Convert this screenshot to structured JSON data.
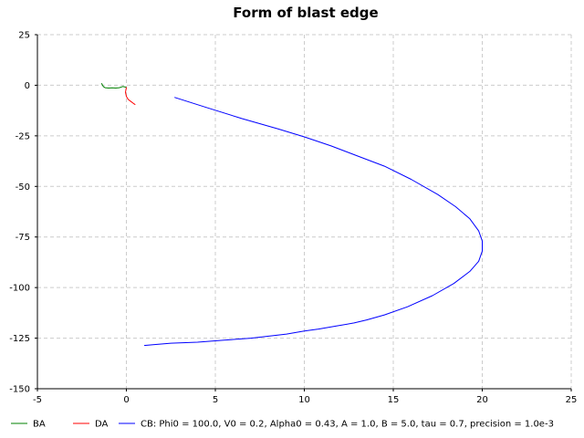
{
  "chart_data": {
    "type": "line",
    "title": "Form of blast edge",
    "xlabel": "",
    "ylabel": "",
    "xlim": [
      -5,
      25
    ],
    "ylim": [
      -150,
      25
    ],
    "xticks": [
      -5,
      0,
      5,
      10,
      15,
      20,
      25
    ],
    "yticks": [
      25,
      0,
      -25,
      -50,
      -75,
      -100,
      -125,
      -150
    ],
    "grid": true,
    "legend_position": "bottom",
    "series": [
      {
        "name": "BA",
        "color": "#008000",
        "x": [
          -1.4,
          -1.3,
          -1.2,
          -1.0,
          -0.8,
          -0.6,
          -0.4,
          -0.2,
          -0.1,
          0.0
        ],
        "y": [
          1.0,
          -0.6,
          -1.2,
          -1.4,
          -1.3,
          -1.4,
          -1.2,
          -0.6,
          -0.8,
          -1.0
        ]
      },
      {
        "name": "DA",
        "color": "#ff0000",
        "x": [
          0.0,
          -0.05,
          0.0,
          0.1,
          0.25,
          0.4,
          0.5
        ],
        "y": [
          -1.0,
          -3.5,
          -5.5,
          -7.0,
          -8.0,
          -9.0,
          -9.6
        ]
      },
      {
        "name": "CB: Phi0 = 100.0, V0 = 0.2, Alpha0 = 0.43, A = 1.0, B = 5.0, tau = 0.7, precision = 1.0e-3",
        "color": "#0000ff",
        "x": [
          2.7,
          4.5,
          6.5,
          8.5,
          10.0,
          11.5,
          13.0,
          14.5,
          16.0,
          17.5,
          18.5,
          19.3,
          19.8,
          20.0,
          20.0,
          19.8,
          19.3,
          18.4,
          17.2,
          15.8,
          14.5,
          13.5,
          12.8,
          11.8,
          10.8,
          10.0,
          9.0,
          8.0,
          7.0,
          5.5,
          4.0,
          2.5,
          1.5,
          1.0
        ],
        "y": [
          -6,
          -11,
          -16.5,
          -21.5,
          -25.5,
          -30,
          -35,
          -40,
          -46.5,
          -54,
          -60,
          -66,
          -72,
          -77,
          -82,
          -87,
          -92,
          -98,
          -104,
          -109.5,
          -113.5,
          -116,
          -117.5,
          -119,
          -120.5,
          -121.5,
          -123,
          -124,
          -125,
          -126,
          -127,
          -127.5,
          -128.2,
          -128.6
        ]
      }
    ]
  }
}
